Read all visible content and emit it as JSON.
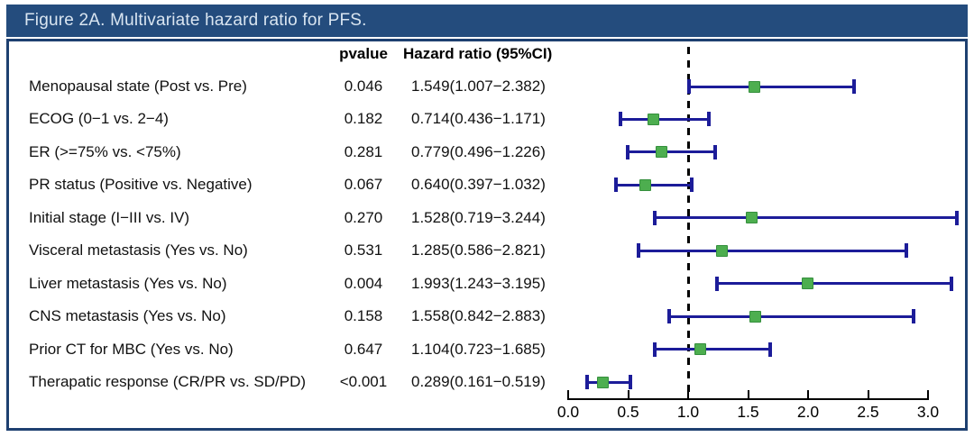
{
  "figure": {
    "title": "Figure 2A. Multivariate hazard ratio for PFS."
  },
  "columns": {
    "pvalue": "pvalue",
    "hr": "Hazard ratio (95%CI)"
  },
  "colors": {
    "title_bar_bg": "#244C7D",
    "title_text": "#d9e5f1",
    "panel_border": "#1E4070",
    "ci_bar": "#1c1c99",
    "marker_fill": "#4dae4f",
    "marker_border": "#358f3d",
    "reference_line": "#000000",
    "axis": "#000000"
  },
  "chart_data": {
    "type": "forest",
    "title": "Figure 2A. Multivariate hazard ratio for PFS.",
    "xlabel": "",
    "xlim": [
      0.0,
      3.0
    ],
    "x_ticks": [
      0.0,
      0.5,
      1.0,
      1.5,
      2.0,
      2.5,
      3.0
    ],
    "x_tick_labels": [
      "0.0",
      "0.5",
      "1.0",
      "1.5",
      "2.0",
      "2.5",
      "3.0"
    ],
    "reference_line_x": 1.0,
    "legend": "none",
    "grid": false,
    "rows": [
      {
        "label": "Menopausal state (Post vs. Pre)",
        "pvalue": "0.046",
        "hr_text": "1.549(1.007−2.382)",
        "hr": 1.549,
        "lo": 1.007,
        "hi": 2.382
      },
      {
        "label": "ECOG (0−1 vs. 2−4)",
        "pvalue": "0.182",
        "hr_text": "0.714(0.436−1.171)",
        "hr": 0.714,
        "lo": 0.436,
        "hi": 1.171
      },
      {
        "label": "ER (>=75% vs. <75%)",
        "pvalue": "0.281",
        "hr_text": "0.779(0.496−1.226)",
        "hr": 0.779,
        "lo": 0.496,
        "hi": 1.226
      },
      {
        "label": "PR status (Positive vs. Negative)",
        "pvalue": "0.067",
        "hr_text": "0.640(0.397−1.032)",
        "hr": 0.64,
        "lo": 0.397,
        "hi": 1.032
      },
      {
        "label": "Initial stage (I−III vs. IV)",
        "pvalue": "0.270",
        "hr_text": "1.528(0.719−3.244)",
        "hr": 1.528,
        "lo": 0.719,
        "hi": 3.244
      },
      {
        "label": "Visceral metastasis (Yes vs. No)",
        "pvalue": "0.531",
        "hr_text": "1.285(0.586−2.821)",
        "hr": 1.285,
        "lo": 0.586,
        "hi": 2.821
      },
      {
        "label": "Liver metastasis (Yes vs. No)",
        "pvalue": "0.004",
        "hr_text": "1.993(1.243−3.195)",
        "hr": 1.993,
        "lo": 1.243,
        "hi": 3.195
      },
      {
        "label": "CNS metastasis (Yes vs. No)",
        "pvalue": "0.158",
        "hr_text": "1.558(0.842−2.883)",
        "hr": 1.558,
        "lo": 0.842,
        "hi": 2.883
      },
      {
        "label": "Prior CT for MBC (Yes vs. No)",
        "pvalue": "0.647",
        "hr_text": "1.104(0.723−1.685)",
        "hr": 1.104,
        "lo": 0.723,
        "hi": 1.685
      },
      {
        "label": "Therapatic response (CR/PR vs. SD/PD)",
        "pvalue": "<0.001",
        "hr_text": "0.289(0.161−0.519)",
        "hr": 0.289,
        "lo": 0.161,
        "hi": 0.519
      }
    ]
  }
}
